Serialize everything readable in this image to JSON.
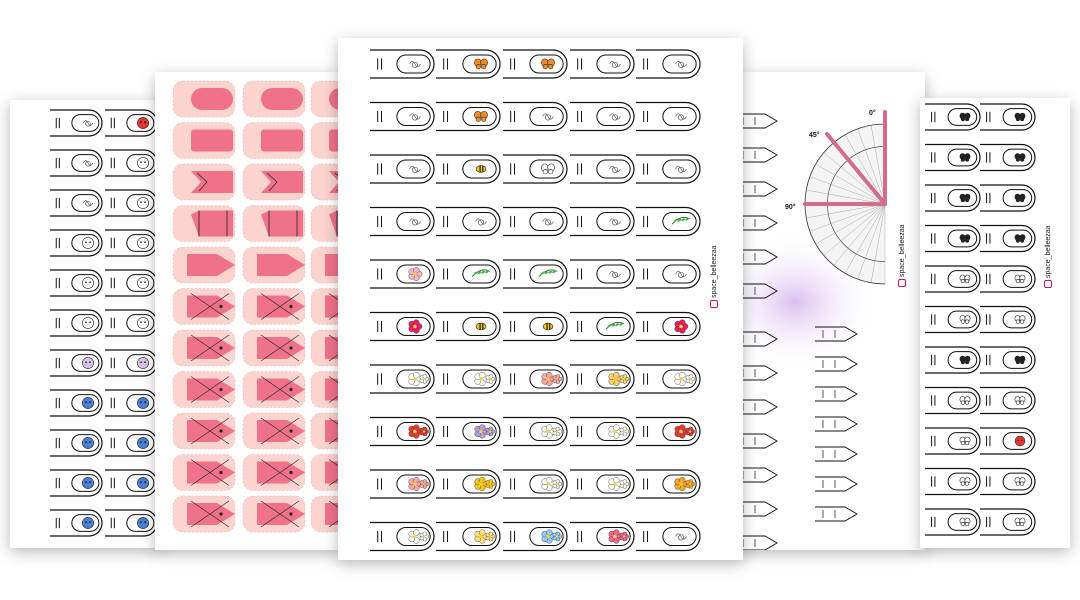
{
  "sheets": {
    "protractor": {
      "handle": "space_belleezaa",
      "angles": [
        "0°",
        "45°",
        "90°"
      ]
    },
    "right": {
      "handle": "space_belleezaa"
    },
    "center": {
      "handle": "space_belleezaa"
    }
  }
}
